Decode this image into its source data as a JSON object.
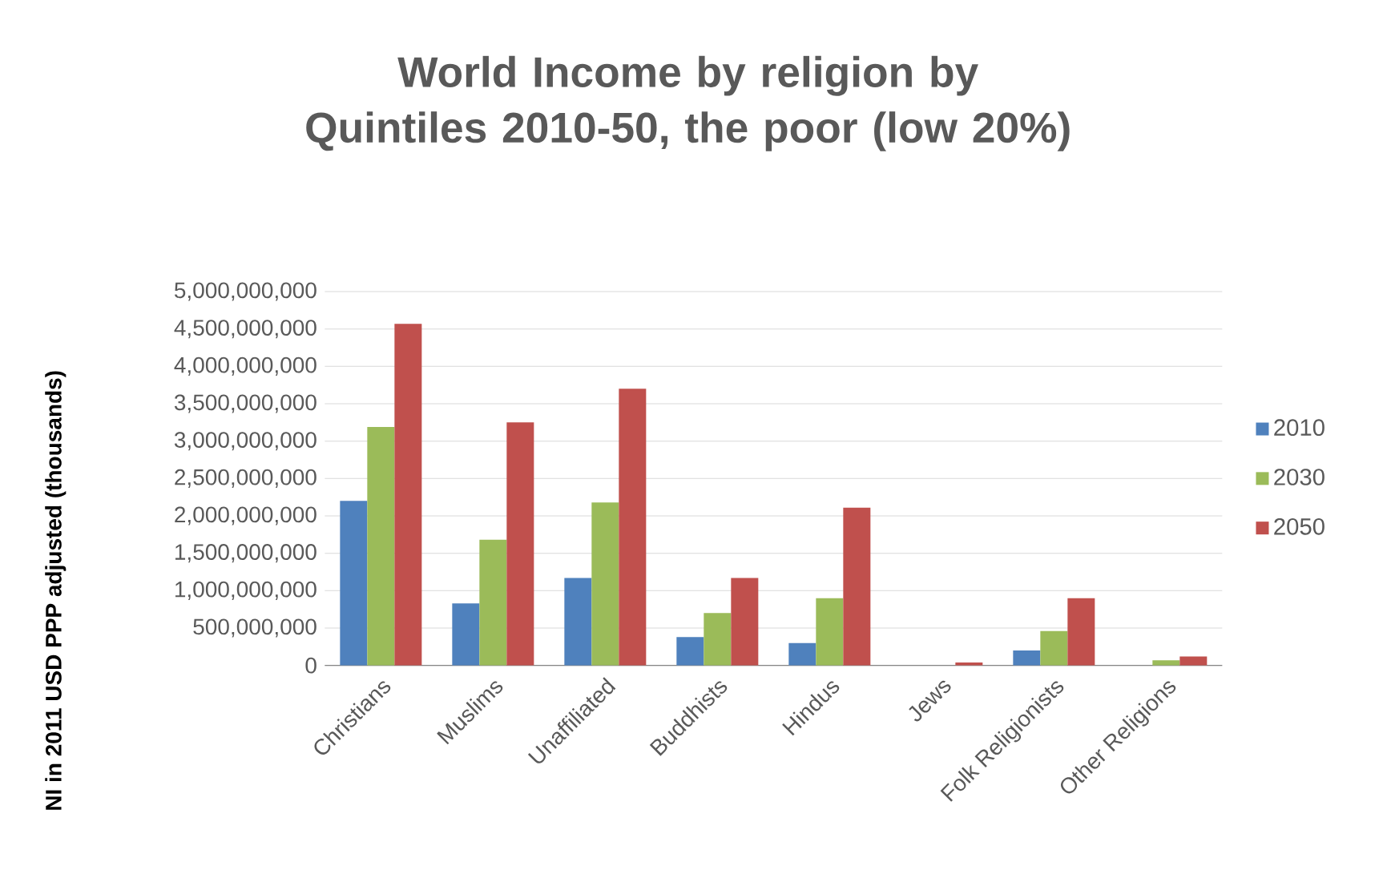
{
  "chart_data": {
    "type": "bar",
    "title": "World Income by religion by Quintiles 2010-50, the poor (low 20%)",
    "ylabel": "NI in 2011 USD PPP adjusted (thousands)",
    "categories": [
      "Christians",
      "Muslims",
      "Unaffiliated",
      "Buddhists",
      "Hindus",
      "Jews",
      "Folk Religionists",
      "Other Religions"
    ],
    "series": [
      {
        "name": "2010",
        "color": "#4f81bd",
        "values": [
          2200000000,
          830000000,
          1170000000,
          380000000,
          300000000,
          null,
          200000000,
          null
        ]
      },
      {
        "name": "2030",
        "color": "#9bbb59",
        "values": [
          3190000000,
          1680000000,
          2180000000,
          700000000,
          900000000,
          null,
          460000000,
          70000000
        ]
      },
      {
        "name": "2050",
        "color": "#c0504d",
        "values": [
          4570000000,
          3250000000,
          3700000000,
          1170000000,
          2110000000,
          40000000,
          900000000,
          120000000
        ]
      }
    ],
    "ylim": [
      0,
      5000000000
    ],
    "yticks": [
      {
        "value": 0,
        "label": "0"
      },
      {
        "value": 500000000,
        "label": "500,000,000"
      },
      {
        "value": 1000000000,
        "label": "1,000,000,000"
      },
      {
        "value": 1500000000,
        "label": "1,500,000,000"
      },
      {
        "value": 2000000000,
        "label": "2,000,000,000"
      },
      {
        "value": 2500000000,
        "label": "2,500,000,000"
      },
      {
        "value": 3000000000,
        "label": "3,000,000,000"
      },
      {
        "value": 3500000000,
        "label": "3,500,000,000"
      },
      {
        "value": 4000000000,
        "label": "4,000,000,000"
      },
      {
        "value": 4500000000,
        "label": "4,500,000,000"
      },
      {
        "value": 5000000000,
        "label": "5,000,000,000"
      }
    ],
    "grid": "y",
    "legend": "right"
  }
}
